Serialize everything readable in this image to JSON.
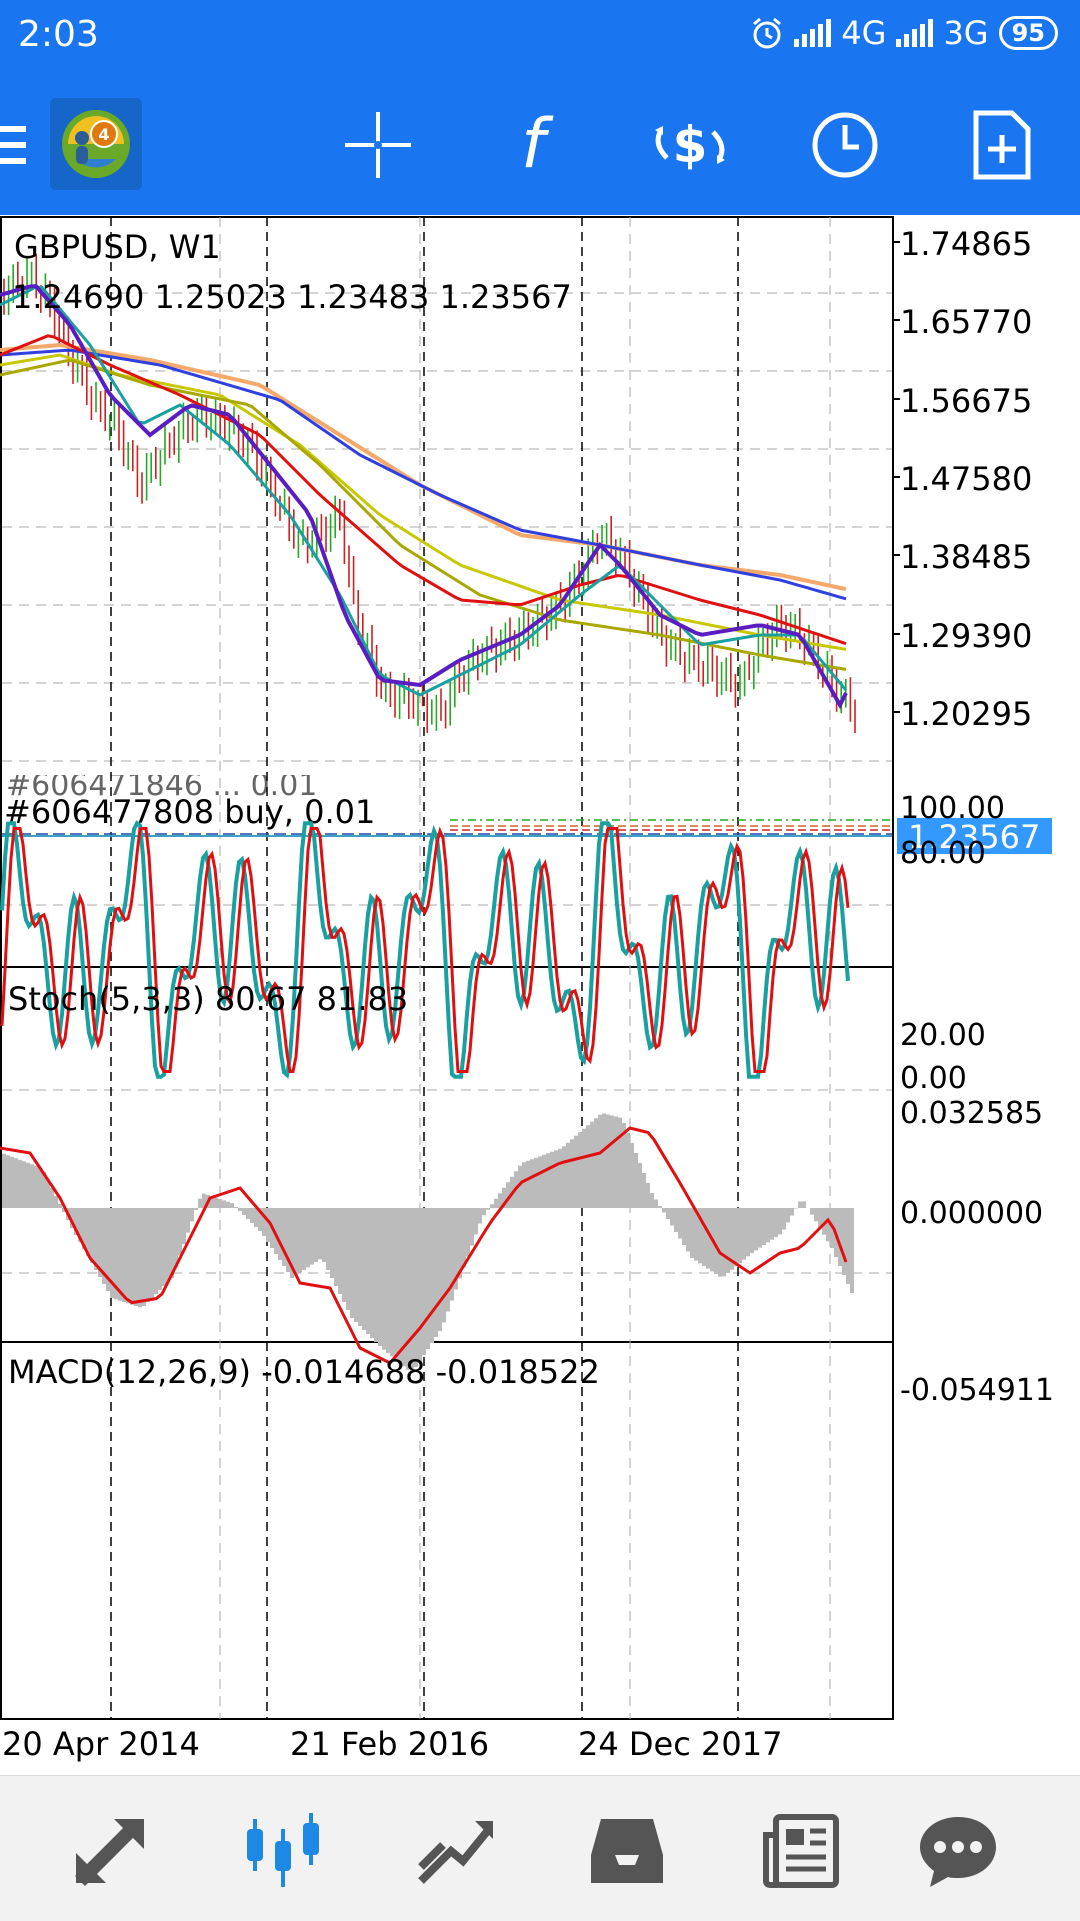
{
  "status_bar": {
    "time": "2:03",
    "network1": "4G",
    "network2": "3G",
    "battery": "95"
  },
  "toolbar": {
    "items": [
      {
        "name": "menu"
      },
      {
        "name": "mt4-logo"
      },
      {
        "name": "crosshair"
      },
      {
        "name": "indicators",
        "label": "f"
      },
      {
        "name": "trade"
      },
      {
        "name": "timeframe"
      },
      {
        "name": "templates"
      }
    ]
  },
  "chart": {
    "symbol": "GBPUSD, W1",
    "ohlc": "1.24690 1.25023 1.23483 1.23567",
    "price_axis": [
      "1.74865",
      "1.65770",
      "1.56675",
      "1.47580",
      "1.38485",
      "1.29390",
      "1.20295"
    ],
    "current_price": "1.23567",
    "order_label": "#606477808 buy, 0.01",
    "order_label_hidden": "#606471846 ... 0.01",
    "colors": {
      "ma_blue": "#2f3fe0",
      "ma_orange": "#f4a86a",
      "ma_yellow": "#c8c800",
      "ma_olive": "#a8a800",
      "ma_red": "#e01010",
      "ma_teal": "#1aa0a0",
      "ma_purple": "#5a1ec0",
      "bull": "#22aa22",
      "bear": "#cc2222",
      "price_tag": "#3399ff"
    }
  },
  "stoch": {
    "label": "Stoch(5,3,3) 80.67 81.83",
    "axis": [
      "100.00",
      "80.00",
      "20.00",
      "0.00"
    ]
  },
  "macd": {
    "label": "MACD(12,26,9) -0.014688 -0.018522",
    "axis": [
      "0.032585",
      "0.000000",
      "-0.054911"
    ]
  },
  "time_axis": [
    "20 Apr 2014",
    "21 Feb 2016",
    "24 Dec 2017"
  ],
  "bottom_nav": [
    {
      "name": "quotes",
      "active": false
    },
    {
      "name": "chart",
      "active": true
    },
    {
      "name": "trade",
      "active": false
    },
    {
      "name": "history",
      "active": false
    },
    {
      "name": "news",
      "active": false
    },
    {
      "name": "messages",
      "active": false
    }
  ]
}
